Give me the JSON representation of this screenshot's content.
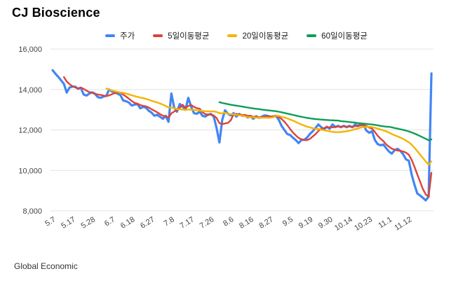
{
  "header": {
    "title": "CJ Bioscience"
  },
  "footer": {
    "source": "Global Economic"
  },
  "chart_data": {
    "type": "line",
    "title": "CJ Bioscience",
    "xlabel": "",
    "ylabel": "",
    "ylim": [
      8000,
      16000
    ],
    "grid": true,
    "legend_position": "top",
    "y_ticks": [
      16000,
      14000,
      12000,
      10000,
      8000
    ],
    "y_tick_labels": [
      "16,000",
      "14,000",
      "12,000",
      "10,000",
      "8,000"
    ],
    "x_tick_labels": [
      "5.7",
      "5.17",
      "5.28",
      "6.7",
      "6.18",
      "6.27",
      "7.8",
      "7.17",
      "7.26",
      "8.6",
      "8.16",
      "8.27",
      "9.5",
      "9.19",
      "9.30",
      "10.14",
      "10.23",
      "11.1",
      "11.12"
    ],
    "x_tick_indices": [
      0,
      7,
      14,
      21,
      28,
      35,
      42,
      49,
      56,
      63,
      70,
      77,
      84,
      91,
      98,
      105,
      112,
      119,
      126
    ],
    "series": [
      {
        "id": "price",
        "name": "주가",
        "color": "#4285f4",
        "values": [
          14950,
          14780,
          14620,
          14450,
          14280,
          13850,
          14100,
          14140,
          14140,
          14030,
          14080,
          13750,
          13700,
          13800,
          13860,
          13790,
          13620,
          13590,
          13650,
          13690,
          14000,
          13900,
          13860,
          13790,
          13720,
          13450,
          13420,
          13350,
          13210,
          13250,
          13280,
          13070,
          13140,
          13100,
          12950,
          12860,
          12700,
          12750,
          12650,
          12550,
          12700,
          12400,
          13800,
          13100,
          12900,
          13280,
          13150,
          13000,
          13590,
          13150,
          12830,
          12800,
          12900,
          12700,
          12660,
          12750,
          12790,
          12660,
          12100,
          11380,
          12500,
          12970,
          12800,
          12720,
          12830,
          12660,
          12790,
          12700,
          12720,
          12620,
          12670,
          12550,
          12680,
          12600,
          12660,
          12720,
          12700,
          12650,
          12650,
          12700,
          12500,
          12200,
          12000,
          11800,
          11750,
          11620,
          11500,
          11350,
          11500,
          11520,
          11620,
          11800,
          11930,
          12100,
          12270,
          12140,
          12030,
          12160,
          12060,
          12270,
          12150,
          12200,
          12130,
          12200,
          12130,
          12200,
          12130,
          12270,
          12200,
          12310,
          12250,
          11970,
          11860,
          11930,
          11500,
          11300,
          11240,
          11280,
          11100,
          10930,
          10830,
          11000,
          11070,
          10970,
          10800,
          10550,
          10480,
          9800,
          9300,
          8860,
          8760,
          8640,
          8520,
          8700,
          14790
        ]
      },
      {
        "id": "ma5",
        "name": "5일이동평균",
        "color": "#db4437",
        "derived_from": "price",
        "window": 5
      },
      {
        "id": "ma20",
        "name": "20일이동평균",
        "color": "#f4b400",
        "derived_from": "price",
        "window": 20
      },
      {
        "id": "ma60",
        "name": "60일이동평균",
        "color": "#0f9d58",
        "derived_from": "price",
        "window": 60
      }
    ]
  }
}
